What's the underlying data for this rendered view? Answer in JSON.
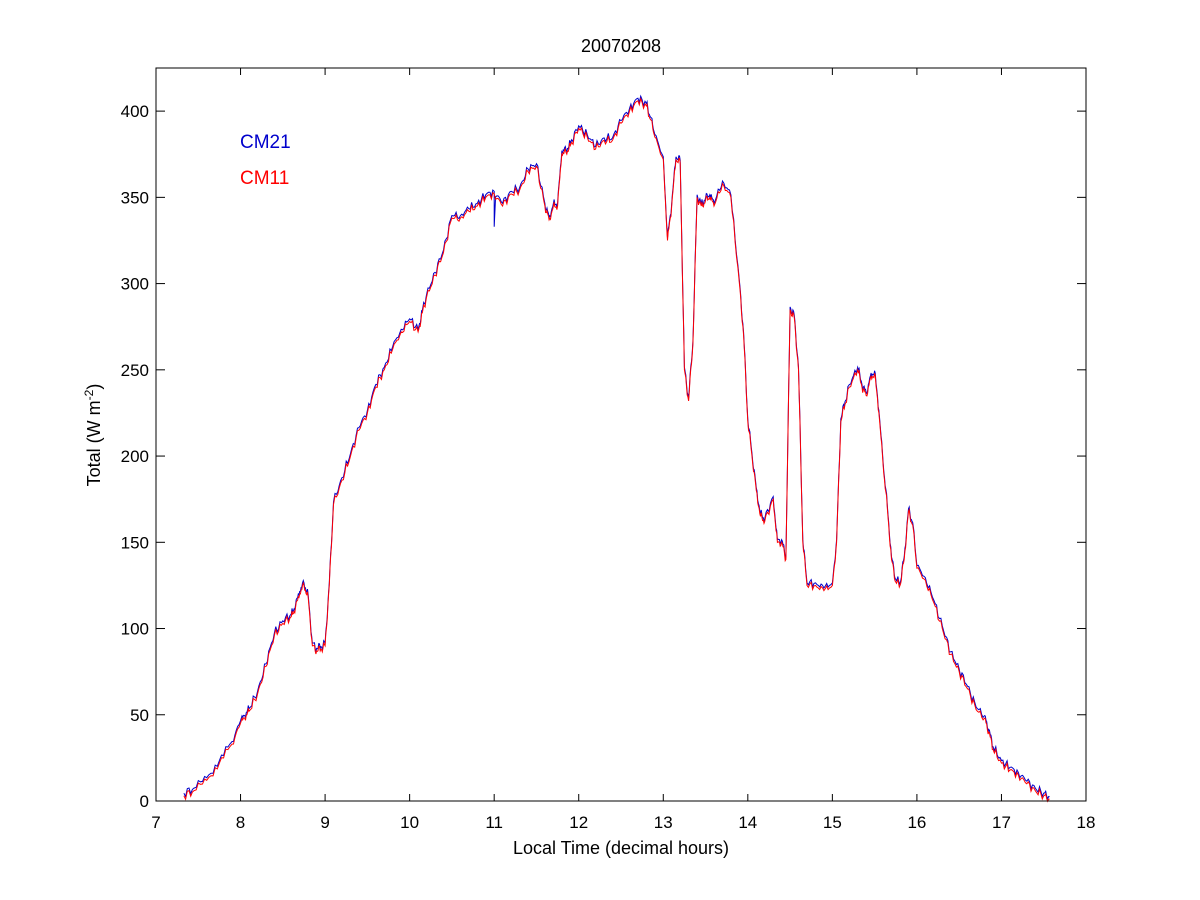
{
  "chart_data": {
    "type": "line",
    "title": "20070208",
    "xlabel": "Local Time (decimal hours)",
    "ylabel": {
      "base": "Total (W m",
      "sup": "-2",
      "end": ")"
    },
    "xlim": [
      7,
      18
    ],
    "ylim": [
      0,
      425
    ],
    "xticks": [
      7,
      8,
      9,
      10,
      11,
      12,
      13,
      14,
      15,
      16,
      17,
      18
    ],
    "yticks": [
      0,
      50,
      100,
      150,
      200,
      250,
      300,
      350,
      400
    ],
    "grid": false,
    "legend_position": "top-left",
    "series": [
      {
        "name": "CM21",
        "color": "#0000cc",
        "offset": 1.5,
        "x": [
          7.33,
          7.45,
          7.6,
          7.75,
          7.9,
          8.0,
          8.05,
          8.1,
          8.2,
          8.3,
          8.4,
          8.5,
          8.6,
          8.65,
          8.7,
          8.75,
          8.8,
          8.85,
          8.9,
          8.95,
          9.0,
          9.05,
          9.1,
          9.2,
          9.3,
          9.4,
          9.5,
          9.6,
          9.7,
          9.8,
          9.9,
          10.0,
          10.1,
          10.15,
          10.2,
          10.3,
          10.4,
          10.5,
          10.6,
          10.7,
          10.8,
          10.9,
          11.0,
          11.1,
          11.2,
          11.3,
          11.4,
          11.5,
          11.6,
          11.65,
          11.7,
          11.75,
          11.8,
          11.85,
          11.9,
          12.0,
          12.1,
          12.2,
          12.3,
          12.4,
          12.5,
          12.6,
          12.7,
          12.8,
          12.85,
          12.9,
          13.0,
          13.05,
          13.1,
          13.15,
          13.2,
          13.25,
          13.3,
          13.35,
          13.4,
          13.45,
          13.5,
          13.55,
          13.6,
          13.7,
          13.8,
          13.9,
          13.95,
          14.0,
          14.05,
          14.1,
          14.15,
          14.2,
          14.3,
          14.35,
          14.4,
          14.45,
          14.5,
          14.55,
          14.6,
          14.65,
          14.7,
          14.8,
          14.9,
          15.0,
          15.05,
          15.1,
          15.15,
          15.2,
          15.3,
          15.35,
          15.4,
          15.45,
          15.5,
          15.55,
          15.6,
          15.65,
          15.7,
          15.75,
          15.8,
          15.85,
          15.9,
          15.95,
          16.0,
          16.1,
          16.2,
          16.3,
          16.4,
          16.5,
          16.6,
          16.7,
          16.8,
          16.85,
          16.9,
          17.0,
          17.1,
          17.2,
          17.3,
          17.4,
          17.5,
          17.57
        ],
        "y": [
          3,
          6,
          12,
          22,
          33,
          45,
          48,
          52,
          62,
          78,
          96,
          103,
          107,
          112,
          120,
          125,
          118,
          90,
          87,
          88,
          90,
          125,
          172,
          186,
          200,
          215,
          225,
          240,
          250,
          262,
          272,
          278,
          272,
          283,
          292,
          305,
          318,
          338,
          338,
          342,
          345,
          350,
          352,
          345,
          352,
          354,
          365,
          368,
          345,
          337,
          345,
          345,
          375,
          376,
          380,
          390,
          385,
          378,
          383,
          383,
          393,
          400,
          406,
          403,
          395,
          385,
          372,
          325,
          345,
          372,
          370,
          250,
          232,
          265,
          350,
          345,
          348,
          350,
          345,
          358,
          350,
          300,
          270,
          220,
          200,
          180,
          165,
          162,
          175,
          150,
          150,
          140,
          285,
          280,
          250,
          150,
          125,
          125,
          122,
          125,
          150,
          220,
          230,
          240,
          250,
          240,
          235,
          245,
          248,
          225,
          195,
          170,
          140,
          127,
          125,
          140,
          168,
          160,
          135,
          128,
          115,
          100,
          85,
          75,
          65,
          53,
          48,
          40,
          30,
          22,
          18,
          15,
          10,
          6,
          3,
          1
        ],
        "dip_x": 11.0,
        "dip_y": 333
      },
      {
        "name": "CM11",
        "color": "#ff0000",
        "offset": 0,
        "x": [
          7.33,
          7.45,
          7.6,
          7.75,
          7.9,
          8.0,
          8.05,
          8.1,
          8.2,
          8.3,
          8.4,
          8.5,
          8.6,
          8.65,
          8.7,
          8.75,
          8.8,
          8.85,
          8.9,
          8.95,
          9.0,
          9.05,
          9.1,
          9.2,
          9.3,
          9.4,
          9.5,
          9.6,
          9.7,
          9.8,
          9.9,
          10.0,
          10.1,
          10.15,
          10.2,
          10.3,
          10.4,
          10.5,
          10.6,
          10.7,
          10.8,
          10.9,
          11.0,
          11.1,
          11.2,
          11.3,
          11.4,
          11.5,
          11.6,
          11.65,
          11.7,
          11.75,
          11.8,
          11.85,
          11.9,
          12.0,
          12.1,
          12.2,
          12.3,
          12.4,
          12.5,
          12.6,
          12.7,
          12.8,
          12.85,
          12.9,
          13.0,
          13.05,
          13.1,
          13.15,
          13.2,
          13.25,
          13.3,
          13.35,
          13.4,
          13.45,
          13.5,
          13.55,
          13.6,
          13.7,
          13.8,
          13.9,
          13.95,
          14.0,
          14.05,
          14.1,
          14.15,
          14.2,
          14.3,
          14.35,
          14.4,
          14.45,
          14.5,
          14.55,
          14.6,
          14.65,
          14.7,
          14.8,
          14.9,
          15.0,
          15.05,
          15.1,
          15.15,
          15.2,
          15.3,
          15.35,
          15.4,
          15.45,
          15.5,
          15.55,
          15.6,
          15.65,
          15.7,
          15.75,
          15.8,
          15.85,
          15.9,
          15.95,
          16.0,
          16.1,
          16.2,
          16.3,
          16.4,
          16.5,
          16.6,
          16.7,
          16.8,
          16.85,
          16.9,
          17.0,
          17.1,
          17.2,
          17.3,
          17.4,
          17.5,
          17.57
        ],
        "y": [
          3,
          6,
          12,
          22,
          33,
          45,
          48,
          52,
          62,
          78,
          96,
          103,
          107,
          112,
          120,
          125,
          118,
          90,
          87,
          88,
          90,
          125,
          172,
          186,
          200,
          215,
          225,
          240,
          250,
          262,
          272,
          278,
          272,
          283,
          292,
          305,
          318,
          338,
          338,
          342,
          345,
          350,
          352,
          345,
          352,
          354,
          365,
          368,
          345,
          337,
          345,
          345,
          375,
          376,
          380,
          390,
          385,
          378,
          383,
          383,
          393,
          400,
          406,
          403,
          395,
          385,
          372,
          325,
          345,
          372,
          370,
          250,
          232,
          265,
          350,
          345,
          348,
          350,
          345,
          358,
          350,
          300,
          270,
          220,
          200,
          180,
          165,
          162,
          175,
          150,
          150,
          140,
          285,
          280,
          250,
          150,
          125,
          125,
          122,
          125,
          150,
          220,
          230,
          240,
          250,
          240,
          235,
          245,
          248,
          225,
          195,
          170,
          140,
          127,
          125,
          140,
          168,
          160,
          135,
          128,
          115,
          100,
          85,
          75,
          65,
          53,
          48,
          40,
          30,
          22,
          18,
          15,
          10,
          6,
          3,
          1
        ]
      }
    ]
  }
}
